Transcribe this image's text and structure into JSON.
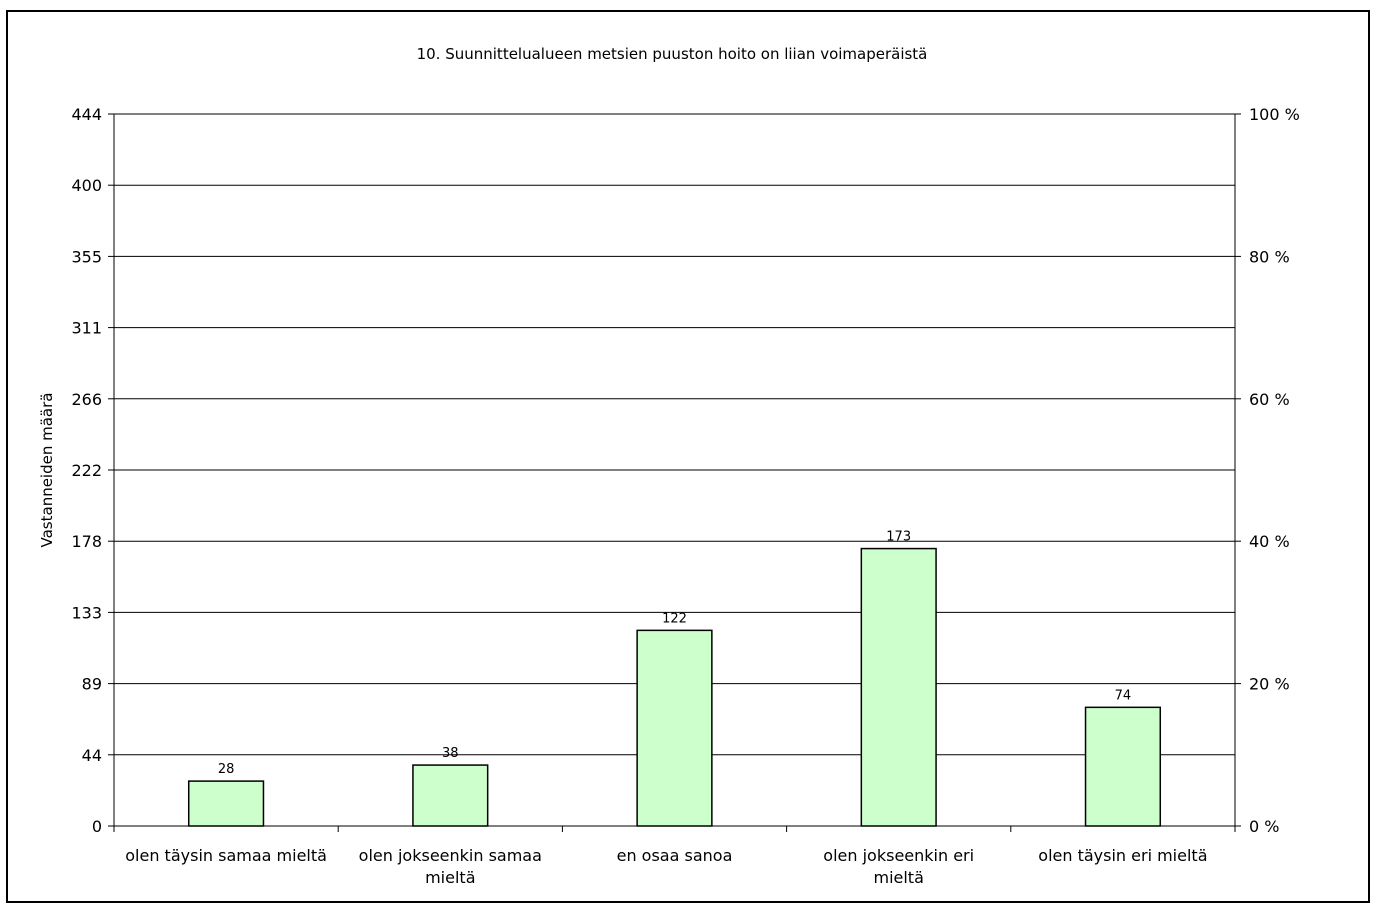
{
  "chart_data": {
    "type": "bar",
    "title": "10. Suunnittelualueen metsien puuston hoito on liian voimaperäistä",
    "ylabel": "Vastanneiden määrä",
    "xlabel": "",
    "categories": [
      [
        "olen täysin samaa mieltä"
      ],
      [
        "olen jokseenkin samaa",
        "mieltä"
      ],
      [
        "en osaa sanoa"
      ],
      [
        "olen jokseenkin eri",
        "mieltä"
      ],
      [
        "olen täysin eri mieltä"
      ]
    ],
    "values": [
      28,
      38,
      122,
      173,
      74
    ],
    "data_labels": [
      "28",
      "38",
      "122",
      "173",
      "74"
    ],
    "ylim": [
      0,
      444
    ],
    "y_ticks": [
      "0",
      "44",
      "89",
      "133",
      "178",
      "222",
      "266",
      "311",
      "355",
      "400",
      "444"
    ],
    "y2_ticks": [
      "0 %",
      "20 %",
      "40 %",
      "60 %",
      "80 %",
      "100 %"
    ],
    "grid": true,
    "legend": "none",
    "bar_color": "#ccffcc",
    "bar_border": "#000000"
  }
}
